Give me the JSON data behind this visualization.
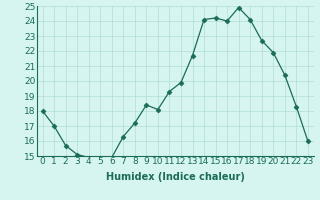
{
  "x": [
    0,
    1,
    2,
    3,
    4,
    5,
    6,
    7,
    8,
    9,
    10,
    11,
    12,
    13,
    14,
    15,
    16,
    17,
    18,
    19,
    20,
    21,
    22,
    23
  ],
  "y": [
    18,
    17,
    15.7,
    15.1,
    14.9,
    14.9,
    14.9,
    16.3,
    17.2,
    18.4,
    18.1,
    19.3,
    19.9,
    21.7,
    24.1,
    24.2,
    24.0,
    24.9,
    24.1,
    22.7,
    21.9,
    20.4,
    18.3,
    16.0
  ],
  "xlabel": "Humidex (Indice chaleur)",
  "ylim": [
    15,
    25
  ],
  "xlim": [
    -0.5,
    23.5
  ],
  "yticks": [
    15,
    16,
    17,
    18,
    19,
    20,
    21,
    22,
    23,
    24,
    25
  ],
  "xtick_labels": [
    "0",
    "1",
    "2",
    "3",
    "4",
    "5",
    "6",
    "7",
    "8",
    "9",
    "10",
    "11",
    "12",
    "13",
    "14",
    "15",
    "16",
    "17",
    "18",
    "19",
    "20",
    "21",
    "22",
    "23"
  ],
  "line_color": "#1a6b5a",
  "marker": "D",
  "marker_size": 2.5,
  "bg_color": "#d6f5f0",
  "grid_color": "#b0ddd6",
  "label_fontsize": 7,
  "tick_fontsize": 6.5
}
